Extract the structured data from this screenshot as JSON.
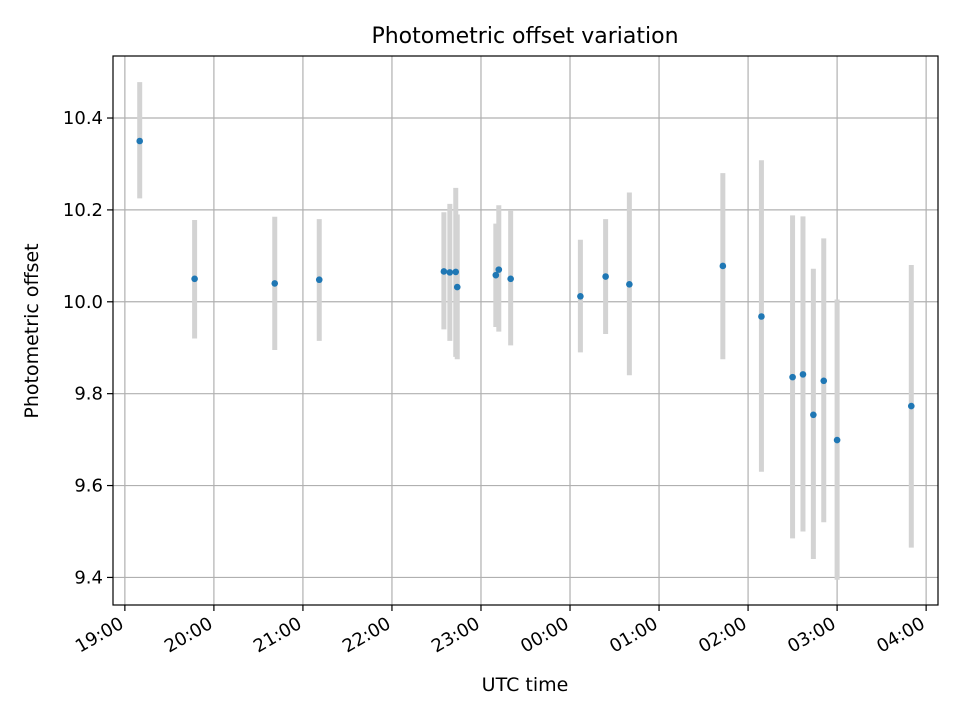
{
  "chart_data": {
    "type": "scatter",
    "title": "Photometric offset variation",
    "xlabel": "UTC time",
    "ylabel": "Photometric offset",
    "x_ticks": [
      "19:00",
      "20:00",
      "21:00",
      "22:00",
      "23:00",
      "00:00",
      "01:00",
      "02:00",
      "03:00",
      "04:00"
    ],
    "y_ticks": [
      "9.4",
      "9.6",
      "9.8",
      "10.0",
      "10.2",
      "10.4"
    ],
    "xlim": [
      "18:52",
      "04:08"
    ],
    "ylim": [
      9.34,
      10.535
    ],
    "grid": true,
    "x": [
      "19:10",
      "19:47",
      "20:41",
      "21:11",
      "22:35",
      "22:39",
      "22:43",
      "22:44",
      "23:10",
      "23:12",
      "23:20",
      "00:07",
      "00:24",
      "00:40",
      "01:43",
      "02:09",
      "02:30",
      "02:37",
      "02:44",
      "02:51",
      "03:00",
      "03:50"
    ],
    "y": [
      10.35,
      10.05,
      10.04,
      10.048,
      10.066,
      10.064,
      10.065,
      10.032,
      10.058,
      10.07,
      10.05,
      10.012,
      10.055,
      10.038,
      10.078,
      9.968,
      9.836,
      9.842,
      9.754,
      9.828,
      9.699,
      9.773
    ],
    "yerr_low": [
      10.225,
      9.92,
      9.895,
      9.915,
      9.94,
      9.915,
      9.88,
      9.875,
      9.945,
      9.935,
      9.905,
      9.89,
      9.93,
      9.84,
      9.875,
      9.63,
      9.485,
      9.5,
      9.44,
      9.52,
      9.395,
      9.465
    ],
    "yerr_high": [
      10.478,
      10.178,
      10.185,
      10.18,
      10.195,
      10.213,
      10.248,
      10.19,
      10.17,
      10.21,
      10.198,
      10.135,
      10.18,
      10.238,
      10.28,
      10.308,
      10.188,
      10.186,
      10.072,
      10.138,
      10.005,
      10.08
    ],
    "colors": {
      "point": "#1f77b4",
      "errorbar": "#d3d3d3",
      "grid": "#b0b0b0"
    }
  }
}
